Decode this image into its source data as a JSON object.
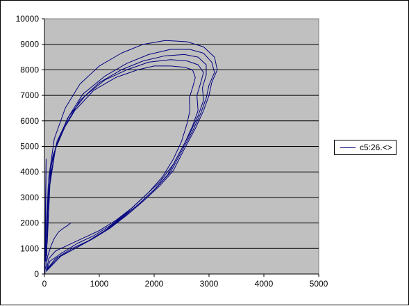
{
  "chart_data": {
    "type": "line",
    "title": "",
    "xlabel": "",
    "ylabel": "",
    "xlim": [
      0,
      5000
    ],
    "ylim": [
      0,
      10000
    ],
    "x_ticks": [
      0,
      1000,
      2000,
      3000,
      4000,
      5000
    ],
    "y_ticks": [
      0,
      1000,
      2000,
      3000,
      4000,
      5000,
      6000,
      7000,
      8000,
      9000,
      10000
    ],
    "grid": "horizontal",
    "legend_position": "right",
    "colors": {
      "plot_area": "#c0c0c0",
      "series": "#000080",
      "grid": "#000000"
    },
    "series": [
      {
        "name": "c5:26.<>",
        "loops": [
          {
            "x": [
              30,
              50,
              80,
              200,
              400,
              700,
              1000,
              1300,
              1600,
              1900,
              2150,
              2350,
              2500,
              2600,
              2650,
              2640,
              2700,
              2750,
              2700,
              2550,
              2300,
              2000,
              1700,
              1300,
              900,
              550,
              300,
              150,
              70,
              40,
              30
            ],
            "y": [
              100,
              300,
              600,
              900,
              1100,
              1400,
              1700,
              2100,
              2600,
              3200,
              3800,
              4500,
              5200,
              5900,
              6400,
              6900,
              7300,
              7700,
              8000,
              8100,
              8150,
              8150,
              8000,
              7700,
              7200,
              6400,
              5500,
              4600,
              3500,
              2000,
              500
            ]
          },
          {
            "x": [
              40,
              100,
              300,
              600,
              900,
              1200,
              1500,
              1800,
              2100,
              2350,
              2550,
              2700,
              2800,
              2780,
              2850,
              2900,
              2800,
              2600,
              2300,
              1900,
              1500,
              1100,
              750,
              450,
              230,
              120,
              60,
              40
            ],
            "y": [
              150,
              500,
              800,
              1200,
              1500,
              1900,
              2400,
              3000,
              3600,
              4300,
              5100,
              5800,
              6400,
              7000,
              7500,
              7900,
              8200,
              8350,
              8400,
              8300,
              8000,
              7600,
              7000,
              6200,
              5200,
              4200,
              2500,
              700
            ]
          },
          {
            "x": [
              50,
              200,
              500,
              800,
              1100,
              1400,
              1700,
              2000,
              2250,
              2450,
              2650,
              2800,
              2900,
              2880,
              2950,
              2950,
              2800,
              2550,
              2200,
              1800,
              1400,
              1000,
              650,
              400,
              200,
              100,
              50
            ],
            "y": [
              200,
              600,
              1000,
              1300,
              1700,
              2200,
              2700,
              3300,
              3900,
              4700,
              5500,
              6200,
              6800,
              7300,
              7800,
              8200,
              8500,
              8600,
              8550,
              8350,
              8000,
              7500,
              6800,
              5900,
              4900,
              3500,
              1200
            ]
          },
          {
            "x": [
              40,
              250,
              550,
              850,
              1150,
              1450,
              1750,
              2050,
              2300,
              2500,
              2700,
              2850,
              2950,
              3000,
              3100,
              3050,
              2900,
              2650,
              2300,
              1900,
              1500,
              1100,
              700,
              420,
              210,
              100,
              40
            ],
            "y": [
              150,
              650,
              1000,
              1350,
              1750,
              2250,
              2800,
              3400,
              4000,
              4800,
              5600,
              6300,
              6900,
              7400,
              7900,
              8300,
              8650,
              8800,
              8800,
              8600,
              8250,
              7750,
              7050,
              6100,
              5000,
              3700,
              900
            ]
          },
          {
            "x": [
              30,
              300,
              600,
              900,
              1200,
              1500,
              1800,
              2100,
              2350,
              2550,
              2750,
              2900,
              3000,
              3050,
              3150,
              3100,
              2900,
              2600,
              2200,
              1800,
              1400,
              1000,
              650,
              380,
              180,
              80,
              30
            ],
            "y": [
              100,
              700,
              1050,
              1400,
              1800,
              2300,
              2850,
              3450,
              4050,
              4900,
              5700,
              6400,
              7000,
              7500,
              8000,
              8500,
              8900,
              9100,
              9150,
              9000,
              8650,
              8150,
              7450,
              6500,
              5300,
              3800,
              700
            ]
          },
          {
            "x": [
              20,
              60,
              120,
              180,
              260,
              350,
              420,
              480
            ],
            "y": [
              200,
              700,
              1100,
              1400,
              1650,
              1800,
              1900,
              2000
            ]
          },
          {
            "x": [
              10,
              15,
              20,
              30,
              25,
              20
            ],
            "y": [
              0,
              1500,
              3000,
              4500,
              3000,
              500
            ]
          }
        ]
      }
    ]
  }
}
